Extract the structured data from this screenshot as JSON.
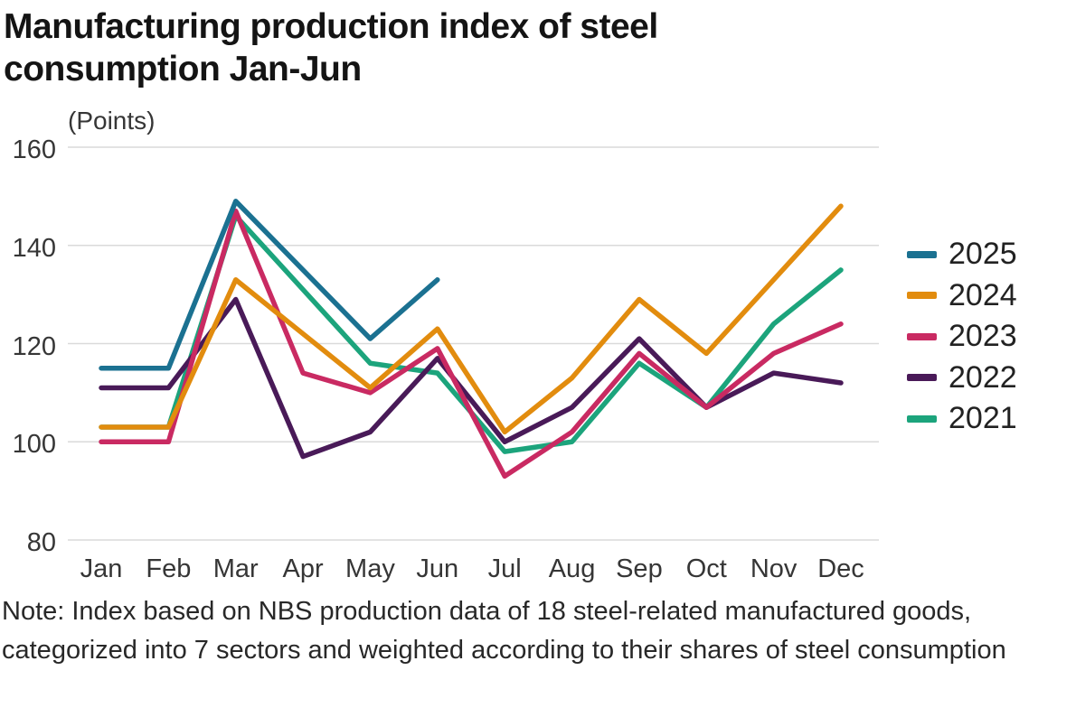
{
  "chart_data": {
    "type": "line",
    "title": "Manufacturing production index of steel consumption Jan-Jun",
    "unit_label": "(Points)",
    "categories": [
      "Jan",
      "Feb",
      "Mar",
      "Apr",
      "May",
      "Jun",
      "Jul",
      "Aug",
      "Sep",
      "Oct",
      "Nov",
      "Dec"
    ],
    "ylim": [
      80,
      160
    ],
    "yticks": [
      160,
      140,
      120,
      100,
      80
    ],
    "grid": "horizontal-only",
    "gridline_color": "#DADADA",
    "legend_position": "right",
    "series": [
      {
        "name": "2025",
        "color": "#1B7191",
        "values": [
          115,
          115,
          149,
          135,
          121,
          133,
          null,
          null,
          null,
          null,
          null,
          null
        ]
      },
      {
        "name": "2024",
        "color": "#E28C0E",
        "values": [
          103,
          103,
          133,
          122,
          111,
          123,
          102,
          113,
          129,
          118,
          133,
          148
        ]
      },
      {
        "name": "2023",
        "color": "#C92A62",
        "values": [
          100,
          100,
          147,
          114,
          110,
          119,
          93,
          102,
          118,
          107,
          118,
          124
        ]
      },
      {
        "name": "2022",
        "color": "#491A58",
        "values": [
          111,
          111,
          129,
          97,
          102,
          117,
          100,
          107,
          121,
          107,
          114,
          112
        ]
      },
      {
        "name": "2021",
        "color": "#1CA47C",
        "values": [
          103,
          103,
          146,
          131,
          116,
          114,
          98,
          100,
          116,
          107,
          124,
          135
        ]
      }
    ],
    "note": "Note: Index based on NBS production data of 18 steel-related manufactured goods, categorized into 7 sectors and weighted according to their shares of steel consumption"
  }
}
